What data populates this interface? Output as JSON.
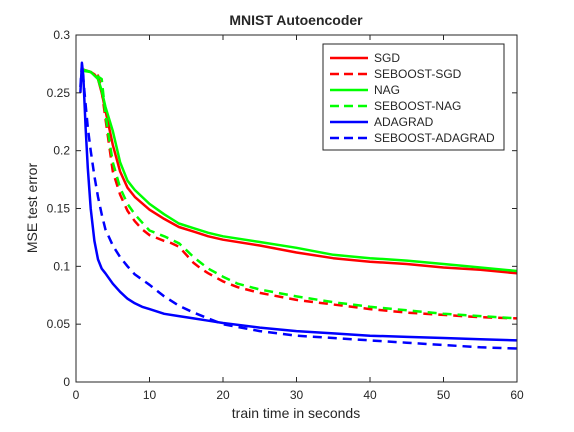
{
  "chart_data": {
    "type": "line",
    "title": "MNIST Autoencoder",
    "xlabel": "train time in seconds",
    "ylabel": "MSE test error",
    "xlim": [
      0,
      60
    ],
    "ylim": [
      0,
      0.3
    ],
    "xticks": [
      0,
      10,
      20,
      30,
      40,
      50,
      60
    ],
    "xtick_labels": [
      "0",
      "10",
      "20",
      "30",
      "40",
      "50",
      "60"
    ],
    "yticks": [
      0,
      0.05,
      0.1,
      0.15,
      0.2,
      0.25,
      0.3
    ],
    "ytick_labels": [
      "0",
      "0.05",
      "0.1",
      "0.15",
      "0.2",
      "0.25",
      "0.3"
    ],
    "grid": false,
    "legend_position": "top-right",
    "series": [
      {
        "name": "SGD",
        "color": "#ff0000",
        "dash": "solid",
        "points": [
          [
            1.0,
            0.27
          ],
          [
            2.0,
            0.268
          ],
          [
            2.5,
            0.266
          ],
          [
            3.0,
            0.262
          ],
          [
            3.5,
            0.25
          ],
          [
            4.0,
            0.235
          ],
          [
            4.5,
            0.22
          ],
          [
            5.0,
            0.205
          ],
          [
            6.0,
            0.182
          ],
          [
            7.0,
            0.168
          ],
          [
            8.0,
            0.16
          ],
          [
            10.0,
            0.149
          ],
          [
            12.0,
            0.141
          ],
          [
            14.0,
            0.134
          ],
          [
            16.0,
            0.13
          ],
          [
            18.0,
            0.126
          ],
          [
            20.0,
            0.123
          ],
          [
            25.0,
            0.118
          ],
          [
            30.0,
            0.112
          ],
          [
            35.0,
            0.107
          ],
          [
            40.0,
            0.104
          ],
          [
            45.0,
            0.102
          ],
          [
            50.0,
            0.099
          ],
          [
            55.0,
            0.097
          ],
          [
            60.0,
            0.094
          ]
        ]
      },
      {
        "name": "SEBOOST-SGD",
        "color": "#ff0000",
        "dash": "dashed",
        "points": [
          [
            1.0,
            0.27
          ],
          [
            2.0,
            0.268
          ],
          [
            3.0,
            0.265
          ],
          [
            3.5,
            0.252
          ],
          [
            4.0,
            0.228
          ],
          [
            4.5,
            0.205
          ],
          [
            5.0,
            0.182
          ],
          [
            6.0,
            0.162
          ],
          [
            7.0,
            0.148
          ],
          [
            8.0,
            0.139
          ],
          [
            9.0,
            0.132
          ],
          [
            10.0,
            0.127
          ],
          [
            12.0,
            0.122
          ],
          [
            13.0,
            0.12
          ],
          [
            14.0,
            0.117
          ],
          [
            15.0,
            0.11
          ],
          [
            16.0,
            0.103
          ],
          [
            17.0,
            0.098
          ],
          [
            18.0,
            0.094
          ],
          [
            20.0,
            0.087
          ],
          [
            22.0,
            0.082
          ],
          [
            25.0,
            0.077
          ],
          [
            30.0,
            0.071
          ],
          [
            35.0,
            0.067
          ],
          [
            40.0,
            0.063
          ],
          [
            45.0,
            0.06
          ],
          [
            50.0,
            0.058
          ],
          [
            55.0,
            0.056
          ],
          [
            60.0,
            0.055
          ]
        ]
      },
      {
        "name": "NAG",
        "color": "#00ff00",
        "dash": "solid",
        "points": [
          [
            1.0,
            0.269
          ],
          [
            2.0,
            0.268
          ],
          [
            3.0,
            0.262
          ],
          [
            3.5,
            0.252
          ],
          [
            4.0,
            0.238
          ],
          [
            5.0,
            0.217
          ],
          [
            6.0,
            0.19
          ],
          [
            7.0,
            0.174
          ],
          [
            8.0,
            0.166
          ],
          [
            10.0,
            0.154
          ],
          [
            12.0,
            0.145
          ],
          [
            14.0,
            0.137
          ],
          [
            16.0,
            0.133
          ],
          [
            18.0,
            0.129
          ],
          [
            20.0,
            0.126
          ],
          [
            25.0,
            0.121
          ],
          [
            30.0,
            0.116
          ],
          [
            35.0,
            0.11
          ],
          [
            40.0,
            0.107
          ],
          [
            45.0,
            0.105
          ],
          [
            50.0,
            0.102
          ],
          [
            55.0,
            0.099
          ],
          [
            60.0,
            0.096
          ]
        ]
      },
      {
        "name": "SEBOOST-NAG",
        "color": "#00ff00",
        "dash": "dashed",
        "points": [
          [
            1.0,
            0.27
          ],
          [
            2.0,
            0.268
          ],
          [
            3.0,
            0.264
          ],
          [
            3.5,
            0.262
          ],
          [
            4.0,
            0.232
          ],
          [
            4.5,
            0.21
          ],
          [
            5.0,
            0.19
          ],
          [
            6.0,
            0.168
          ],
          [
            7.0,
            0.154
          ],
          [
            8.0,
            0.145
          ],
          [
            9.0,
            0.138
          ],
          [
            10.0,
            0.131
          ],
          [
            12.0,
            0.126
          ],
          [
            13.0,
            0.123
          ],
          [
            14.0,
            0.12
          ],
          [
            15.0,
            0.114
          ],
          [
            16.0,
            0.108
          ],
          [
            17.0,
            0.103
          ],
          [
            18.0,
            0.098
          ],
          [
            20.0,
            0.091
          ],
          [
            22.0,
            0.085
          ],
          [
            25.0,
            0.08
          ],
          [
            30.0,
            0.074
          ],
          [
            35.0,
            0.069
          ],
          [
            40.0,
            0.065
          ],
          [
            45.0,
            0.062
          ],
          [
            50.0,
            0.059
          ],
          [
            55.0,
            0.057
          ],
          [
            60.0,
            0.055
          ]
        ]
      },
      {
        "name": "ADAGRAD",
        "color": "#0000ff",
        "dash": "solid",
        "points": [
          [
            0.6,
            0.25
          ],
          [
            0.8,
            0.276
          ],
          [
            1.0,
            0.265
          ],
          [
            1.3,
            0.22
          ],
          [
            1.6,
            0.185
          ],
          [
            2.0,
            0.15
          ],
          [
            2.5,
            0.122
          ],
          [
            3.0,
            0.106
          ],
          [
            3.5,
            0.098
          ],
          [
            4.0,
            0.094
          ],
          [
            5.0,
            0.085
          ],
          [
            6.0,
            0.078
          ],
          [
            7.0,
            0.072
          ],
          [
            8.0,
            0.068
          ],
          [
            9.0,
            0.065
          ],
          [
            10.0,
            0.063
          ],
          [
            12.0,
            0.059
          ],
          [
            14.0,
            0.057
          ],
          [
            16.0,
            0.055
          ],
          [
            18.0,
            0.053
          ],
          [
            20.0,
            0.051
          ],
          [
            25.0,
            0.047
          ],
          [
            30.0,
            0.044
          ],
          [
            35.0,
            0.042
          ],
          [
            40.0,
            0.04
          ],
          [
            45.0,
            0.039
          ],
          [
            50.0,
            0.038
          ],
          [
            55.0,
            0.037
          ],
          [
            60.0,
            0.036
          ]
        ]
      },
      {
        "name": "SEBOOST-ADAGRAD",
        "color": "#0000ff",
        "dash": "dashed",
        "points": [
          [
            0.6,
            0.255
          ],
          [
            0.8,
            0.274
          ],
          [
            1.0,
            0.262
          ],
          [
            1.3,
            0.24
          ],
          [
            1.6,
            0.22
          ],
          [
            2.0,
            0.2
          ],
          [
            2.5,
            0.178
          ],
          [
            3.0,
            0.16
          ],
          [
            3.5,
            0.145
          ],
          [
            4.0,
            0.132
          ],
          [
            5.0,
            0.118
          ],
          [
            6.0,
            0.108
          ],
          [
            7.0,
            0.1
          ],
          [
            8.0,
            0.093
          ],
          [
            10.0,
            0.084
          ],
          [
            12.0,
            0.074
          ],
          [
            14.0,
            0.066
          ],
          [
            16.0,
            0.06
          ],
          [
            18.0,
            0.055
          ],
          [
            20.0,
            0.05
          ],
          [
            25.0,
            0.044
          ],
          [
            30.0,
            0.04
          ],
          [
            35.0,
            0.038
          ],
          [
            40.0,
            0.036
          ],
          [
            45.0,
            0.034
          ],
          [
            50.0,
            0.032
          ],
          [
            55.0,
            0.03
          ],
          [
            60.0,
            0.029
          ]
        ]
      }
    ]
  }
}
